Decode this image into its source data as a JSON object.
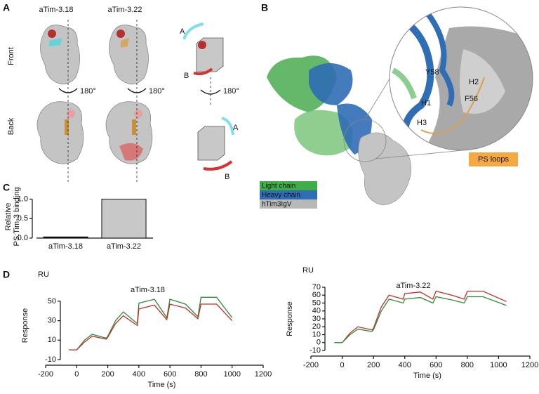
{
  "panel_labels": [
    "A",
    "B",
    "C",
    "D"
  ],
  "panel_a": {
    "columns": [
      "aTim-3.18",
      "aTim-3.22"
    ],
    "rows": [
      "Front",
      "Back"
    ],
    "rotation": [
      "180°",
      "180°",
      "180°"
    ],
    "cube_labels": [
      "A",
      "B",
      "A",
      "B"
    ]
  },
  "panel_b": {
    "residues": [
      "Y58",
      "H2",
      "H1",
      "F56",
      "H3"
    ],
    "callout": "PS loops",
    "legend": [
      {
        "label": "Light chain",
        "color": "#3fae49"
      },
      {
        "label": "Heavy chain",
        "color": "#2f6db5"
      },
      {
        "label": "hTim3IgV",
        "color": "#b8b8b8"
      }
    ]
  },
  "chart_data": [
    {
      "type": "bar",
      "ylabel": [
        "Relative",
        "PS:Tim-3 binding"
      ],
      "categories": [
        "aTim-3.18",
        "aTim-3.22"
      ],
      "values": [
        0.03,
        1.0
      ],
      "colors": [
        "#000000",
        "#c8c8c8"
      ],
      "ylim": [
        0,
        1.1
      ],
      "yticks": [
        {
          "value": 0,
          "label": "0.0"
        },
        {
          "value": 0.5,
          "label": "0.5"
        },
        {
          "value": 1,
          "label": "1.0"
        }
      ]
    },
    {
      "type": "line",
      "title": "aTim-3.18",
      "y_unit": "RU",
      "ylabel": "Response",
      "xlabel": "Time (s)",
      "x": [
        -50,
        0,
        50,
        100,
        190,
        200,
        250,
        300,
        390,
        400,
        500,
        580,
        600,
        700,
        780,
        800,
        900,
        1000
      ],
      "series": [
        {
          "color": "#2e8b3a",
          "values": [
            0,
            0,
            10,
            16,
            12,
            14,
            30,
            39,
            27,
            48,
            52,
            33,
            52,
            47,
            34,
            54,
            54,
            33
          ]
        },
        {
          "color": "#c0302b",
          "values": [
            0,
            0,
            8,
            14,
            11,
            13,
            27,
            35,
            25,
            42,
            46,
            31,
            47,
            43,
            32,
            47,
            47,
            30
          ]
        }
      ],
      "xlim": [
        -200,
        1200
      ],
      "xticks": [
        -200,
        0,
        200,
        400,
        600,
        800,
        1000,
        1200
      ],
      "ylim": [
        -10,
        60
      ],
      "yticks": [
        -10,
        10,
        30,
        50
      ]
    },
    {
      "type": "line",
      "title": "aTim-3.22",
      "y_unit": "RU",
      "ylabel": "Response",
      "xlabel": "Time (s)",
      "x": [
        -50,
        0,
        50,
        100,
        190,
        200,
        250,
        300,
        390,
        400,
        500,
        580,
        600,
        700,
        780,
        800,
        900,
        1050
      ],
      "series": [
        {
          "color": "#c0302b",
          "values": [
            0,
            0,
            12,
            20,
            16,
            18,
            45,
            60,
            55,
            62,
            64,
            55,
            65,
            60,
            55,
            65,
            65,
            52
          ]
        },
        {
          "color": "#2e8b3a",
          "values": [
            0,
            0,
            10,
            17,
            14,
            16,
            40,
            55,
            50,
            55,
            57,
            50,
            58,
            54,
            50,
            58,
            58,
            47
          ]
        }
      ],
      "xlim": [
        -200,
        1200
      ],
      "xticks": [
        -200,
        0,
        200,
        400,
        600,
        800,
        1000,
        1200
      ],
      "ylim": [
        -10,
        70
      ],
      "yticks": [
        -10,
        0,
        10,
        20,
        30,
        40,
        50,
        60,
        70
      ]
    }
  ]
}
